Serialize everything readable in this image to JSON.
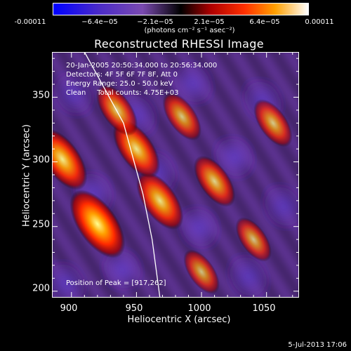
{
  "chart_data": {
    "type": "heatmap",
    "title": "Reconstructed RHESSI Image",
    "xlabel": "Heliocentric X (arcsec)",
    "ylabel": "Heliocentric Y (arcsec)",
    "xlim": [
      885,
      1075
    ],
    "ylim": [
      195,
      385
    ],
    "x_ticks": [
      "900",
      "950",
      "1000",
      "1050"
    ],
    "y_ticks": [
      "200",
      "250",
      "300",
      "350"
    ],
    "colorbar": {
      "ticks": [
        "-0.00011",
        "−6.4e−05",
        "−2.1e−05",
        "2.1e−05",
        "6.4e−05",
        "0.00011"
      ],
      "units": "(photons cm⁻² s⁻¹ asec⁻²)",
      "range": [
        -0.00011,
        0.00011
      ]
    },
    "annotations": [
      "20-Jan-2005 20:50:34.000 to 20:56:34.000",
      "Detectors: 4F 5F 6F 7F 8F, Att 0",
      "Energy Range: 25.0 - 50.0 keV",
      "Clean     Total counts: 4.75E+03"
    ],
    "peak_label": "Position of Peak = [917,262]",
    "limb_line": [
      [
        910,
        385
      ],
      [
        940,
        330
      ],
      [
        955,
        275
      ],
      [
        962,
        240
      ],
      [
        968,
        195
      ]
    ],
    "hot_spots": [
      {
        "x": 920,
        "y": 252,
        "value": 0.00011
      },
      {
        "x": 893,
        "y": 302,
        "value": 9e-05
      },
      {
        "x": 968,
        "y": 270,
        "value": 8e-05
      },
      {
        "x": 950,
        "y": 310,
        "value": 8e-05
      },
      {
        "x": 1010,
        "y": 285,
        "value": 6e-05
      },
      {
        "x": 935,
        "y": 340,
        "value": 6e-05
      },
      {
        "x": 985,
        "y": 335,
        "value": 5e-05
      },
      {
        "x": 1055,
        "y": 330,
        "value": 5e-05
      },
      {
        "x": 1000,
        "y": 215,
        "value": 4e-05
      },
      {
        "x": 1040,
        "y": 240,
        "value": 4e-05
      }
    ]
  },
  "footer": "5-Jul-2013 17:06"
}
